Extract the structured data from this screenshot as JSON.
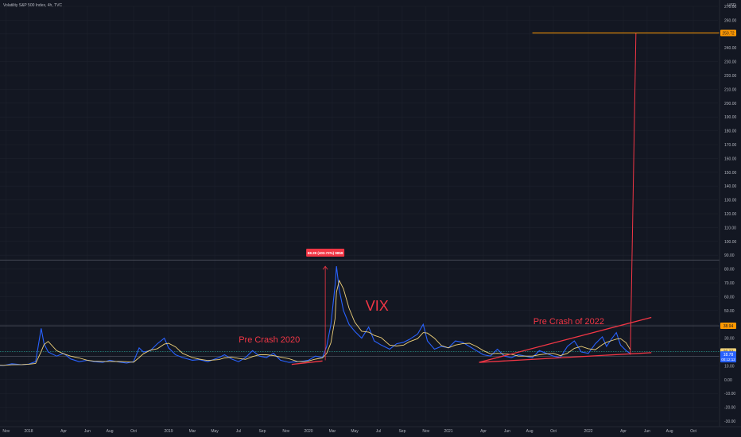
{
  "header": {
    "title": "Volatility S&P 500 Index, 4h, TVC",
    "currency": "USD"
  },
  "annotations": {
    "vix": "VIX",
    "pre_crash_2020": "Pre Crash 2020",
    "pre_crash_2022": "Pre Crash of 2022",
    "measure_label": "68.39 (403.72%) 9859"
  },
  "price_tags": {
    "target": "250.72",
    "resistance": "38.94",
    "last": "20.33",
    "close": "18.78",
    "countdown": "00:12:12",
    "support": "16.91"
  },
  "colors": {
    "background": "#131722",
    "line_main": "#2962ff",
    "line_ma": "#f0d27a",
    "annotation": "#f23645",
    "target": "#ff9800",
    "grid": "#1e222d",
    "axis_text": "#b2b5be"
  },
  "chart_data": {
    "type": "line",
    "title": "Volatility S&P 500 Index, 4h, TVC",
    "xlabel": "",
    "ylabel": "",
    "ylim": [
      -30,
      270
    ],
    "y_ticks": [
      270,
      260,
      250,
      240,
      230,
      220,
      210,
      200,
      190,
      180,
      170,
      160,
      150,
      140,
      130,
      120,
      110,
      100,
      90,
      80,
      70,
      60,
      50,
      40,
      30,
      20,
      10,
      0,
      -10,
      -20,
      -30
    ],
    "x_ticks": [
      {
        "label": "Nov",
        "x": 2017.84
      },
      {
        "label": "2018",
        "x": 2018.0
      },
      {
        "label": "Apr",
        "x": 2018.25
      },
      {
        "label": "Jun",
        "x": 2018.42
      },
      {
        "label": "Aug",
        "x": 2018.58
      },
      {
        "label": "Oct",
        "x": 2018.75
      },
      {
        "label": "2019",
        "x": 2019.0
      },
      {
        "label": "Mar",
        "x": 2019.17
      },
      {
        "label": "May",
        "x": 2019.33
      },
      {
        "label": "Jul",
        "x": 2019.5
      },
      {
        "label": "Sep",
        "x": 2019.67
      },
      {
        "label": "Nov",
        "x": 2019.84
      },
      {
        "label": "2020",
        "x": 2020.0
      },
      {
        "label": "Mar",
        "x": 2020.17
      },
      {
        "label": "May",
        "x": 2020.33
      },
      {
        "label": "Jul",
        "x": 2020.5
      },
      {
        "label": "Sep",
        "x": 2020.67
      },
      {
        "label": "Nov",
        "x": 2020.84
      },
      {
        "label": "2021",
        "x": 2021.0
      },
      {
        "label": "Apr",
        "x": 2021.25
      },
      {
        "label": "Jun",
        "x": 2021.42
      },
      {
        "label": "Aug",
        "x": 2021.58
      },
      {
        "label": "Oct",
        "x": 2021.75
      },
      {
        "label": "2022",
        "x": 2022.0
      },
      {
        "label": "Apr",
        "x": 2022.25
      },
      {
        "label": "Jun",
        "x": 2022.42
      },
      {
        "label": "Aug",
        "x": 2022.58
      },
      {
        "label": "Oct",
        "x": 2022.75
      }
    ],
    "series": [
      {
        "values": [
          [
            2017.75,
            10.5
          ],
          [
            2017.82,
            10.2
          ],
          [
            2017.88,
            11.5
          ],
          [
            2017.95,
            10.8
          ],
          [
            2018.0,
            11.2
          ],
          [
            2018.05,
            13
          ],
          [
            2018.09,
            37
          ],
          [
            2018.11,
            26
          ],
          [
            2018.14,
            20
          ],
          [
            2018.2,
            17
          ],
          [
            2018.25,
            19
          ],
          [
            2018.3,
            15
          ],
          [
            2018.36,
            13
          ],
          [
            2018.42,
            14
          ],
          [
            2018.47,
            13
          ],
          [
            2018.53,
            12.5
          ],
          [
            2018.58,
            14
          ],
          [
            2018.64,
            12.8
          ],
          [
            2018.7,
            12
          ],
          [
            2018.75,
            13
          ],
          [
            2018.79,
            23
          ],
          [
            2018.82,
            20
          ],
          [
            2018.87,
            21
          ],
          [
            2018.92,
            26
          ],
          [
            2018.97,
            30
          ],
          [
            2019.0,
            23
          ],
          [
            2019.05,
            18
          ],
          [
            2019.1,
            16
          ],
          [
            2019.17,
            14
          ],
          [
            2019.22,
            14.5
          ],
          [
            2019.28,
            13
          ],
          [
            2019.36,
            16
          ],
          [
            2019.4,
            18
          ],
          [
            2019.45,
            15
          ],
          [
            2019.5,
            13
          ],
          [
            2019.55,
            16
          ],
          [
            2019.6,
            21
          ],
          [
            2019.65,
            17
          ],
          [
            2019.7,
            16
          ],
          [
            2019.75,
            19
          ],
          [
            2019.8,
            14
          ],
          [
            2019.86,
            12.5
          ],
          [
            2019.92,
            13
          ],
          [
            2019.97,
            13.5
          ],
          [
            2020.0,
            14
          ],
          [
            2020.05,
            17
          ],
          [
            2020.1,
            16
          ],
          [
            2020.13,
            24
          ],
          [
            2020.16,
            40
          ],
          [
            2020.19,
            68
          ],
          [
            2020.2,
            82
          ],
          [
            2020.22,
            65
          ],
          [
            2020.25,
            50
          ],
          [
            2020.29,
            40
          ],
          [
            2020.33,
            35
          ],
          [
            2020.38,
            30
          ],
          [
            2020.43,
            38
          ],
          [
            2020.47,
            28
          ],
          [
            2020.52,
            25
          ],
          [
            2020.58,
            22
          ],
          [
            2020.63,
            26
          ],
          [
            2020.68,
            27
          ],
          [
            2020.72,
            29
          ],
          [
            2020.78,
            33
          ],
          [
            2020.82,
            40
          ],
          [
            2020.85,
            28
          ],
          [
            2020.9,
            22
          ],
          [
            2020.95,
            24
          ],
          [
            2021.0,
            23
          ],
          [
            2021.05,
            28
          ],
          [
            2021.1,
            27
          ],
          [
            2021.15,
            24
          ],
          [
            2021.2,
            21
          ],
          [
            2021.25,
            18
          ],
          [
            2021.3,
            17
          ],
          [
            2021.35,
            22
          ],
          [
            2021.4,
            17
          ],
          [
            2021.45,
            16
          ],
          [
            2021.5,
            18
          ],
          [
            2021.55,
            17
          ],
          [
            2021.6,
            16
          ],
          [
            2021.65,
            21
          ],
          [
            2021.7,
            19
          ],
          [
            2021.75,
            17
          ],
          [
            2021.8,
            16
          ],
          [
            2021.85,
            24
          ],
          [
            2021.9,
            28
          ],
          [
            2021.95,
            20
          ],
          [
            2022.0,
            19
          ],
          [
            2022.05,
            26
          ],
          [
            2022.1,
            31
          ],
          [
            2022.13,
            24
          ],
          [
            2022.17,
            30
          ],
          [
            2022.2,
            34
          ],
          [
            2022.23,
            25
          ],
          [
            2022.27,
            21
          ],
          [
            2022.3,
            18.78
          ]
        ]
      }
    ]
  }
}
